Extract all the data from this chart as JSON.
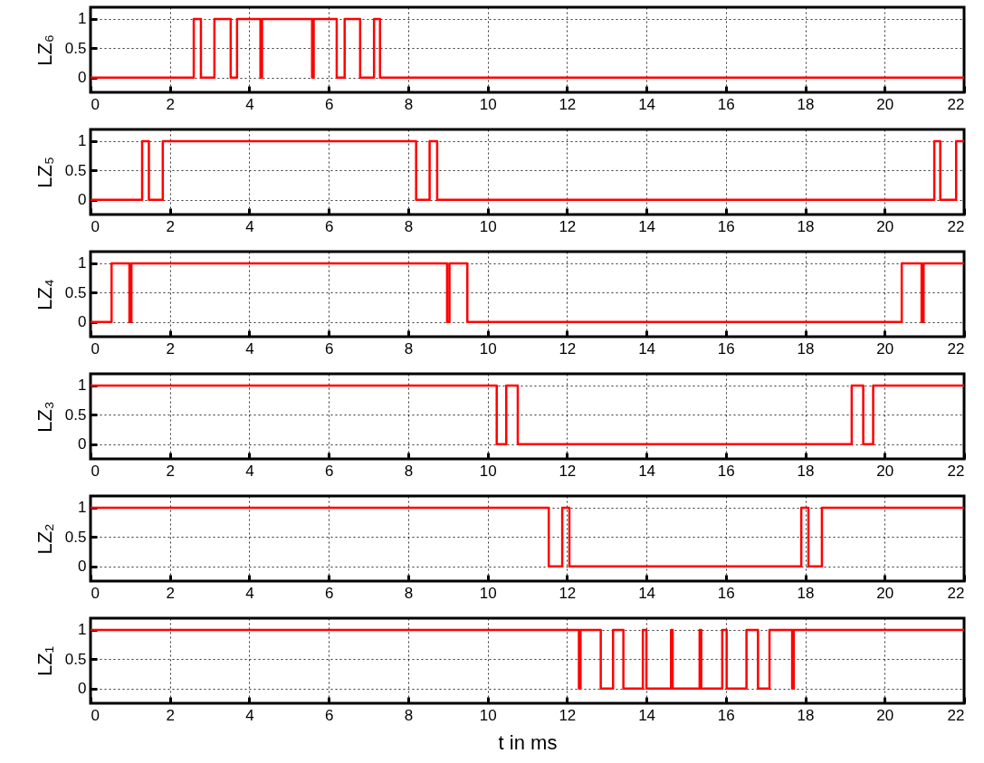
{
  "chart_data": [
    {
      "type": "step",
      "ylabel": "LZ₆",
      "color": "#ff0000",
      "x": [
        0,
        2.6,
        2.78,
        3.12,
        3.53,
        3.69,
        4.28,
        4.32,
        5.58,
        5.62,
        6.2,
        6.4,
        6.79,
        7.14,
        7.29,
        22
      ],
      "values": [
        0,
        1,
        0,
        1,
        0,
        1,
        0,
        1,
        0,
        1,
        0,
        1,
        0,
        1,
        0,
        0
      ],
      "xlim": [
        0,
        22
      ],
      "xticks": [
        0,
        2,
        4,
        6,
        8,
        10,
        12,
        14,
        16,
        18,
        20,
        22
      ],
      "ylim": [
        -0.25,
        1.2
      ],
      "yticks": [
        0,
        0.5,
        1
      ],
      "grid": true
    },
    {
      "type": "step",
      "ylabel": "LZ₅",
      "color": "#ff0000",
      "x": [
        0,
        1.3,
        1.47,
        1.82,
        8.2,
        8.54,
        8.73,
        21.25,
        21.4,
        21.8,
        22
      ],
      "values": [
        0,
        1,
        0,
        1,
        0,
        1,
        0,
        1,
        0,
        1,
        1
      ],
      "xlim": [
        0,
        22
      ],
      "xticks": [
        0,
        2,
        4,
        6,
        8,
        10,
        12,
        14,
        16,
        18,
        20,
        22
      ],
      "ylim": [
        -0.25,
        1.2
      ],
      "yticks": [
        0,
        0.5,
        1
      ],
      "grid": true
    },
    {
      "type": "step",
      "ylabel": "LZ₄",
      "color": "#ff0000",
      "x": [
        0,
        0.53,
        0.98,
        1.03,
        8.98,
        9.04,
        9.49,
        20.43,
        20.93,
        20.98,
        22
      ],
      "values": [
        0,
        1,
        0,
        1,
        0,
        1,
        0,
        1,
        0,
        1,
        1
      ],
      "xlim": [
        0,
        22
      ],
      "xticks": [
        0,
        2,
        4,
        6,
        8,
        10,
        12,
        14,
        16,
        18,
        20,
        22
      ],
      "ylim": [
        -0.25,
        1.2
      ],
      "yticks": [
        0,
        0.5,
        1
      ],
      "grid": true
    },
    {
      "type": "step",
      "ylabel": "LZ₃",
      "color": "#ff0000",
      "x": [
        0,
        10.23,
        10.47,
        10.76,
        19.17,
        19.46,
        19.71,
        22
      ],
      "values": [
        1,
        0,
        1,
        0,
        1,
        0,
        1,
        1
      ],
      "xlim": [
        0,
        22
      ],
      "xticks": [
        0,
        2,
        4,
        6,
        8,
        10,
        12,
        14,
        16,
        18,
        20,
        22
      ],
      "ylim": [
        -0.25,
        1.2
      ],
      "yticks": [
        0,
        0.5,
        1
      ],
      "grid": true
    },
    {
      "type": "step",
      "ylabel": "LZ₂",
      "color": "#ff0000",
      "x": [
        0,
        11.54,
        11.88,
        12.06,
        17.9,
        18.08,
        18.42,
        22
      ],
      "values": [
        1,
        0,
        1,
        0,
        1,
        0,
        1,
        1
      ],
      "xlim": [
        0,
        22
      ],
      "xticks": [
        0,
        2,
        4,
        6,
        8,
        10,
        12,
        14,
        16,
        18,
        20,
        22
      ],
      "ylim": [
        -0.25,
        1.2
      ],
      "yticks": [
        0,
        0.5,
        1
      ],
      "grid": true
    },
    {
      "type": "step",
      "ylabel": "LZ₁",
      "xlabel": "t  in  ms",
      "color": "#ff0000",
      "x": [
        0,
        12.3,
        12.34,
        12.85,
        13.16,
        13.42,
        13.91,
        14.0,
        14.62,
        14.66,
        15.34,
        15.38,
        15.91,
        16.02,
        16.52,
        16.81,
        17.1,
        17.67,
        17.71,
        22
      ],
      "values": [
        1,
        0,
        1,
        0,
        1,
        0,
        1,
        0,
        1,
        0,
        1,
        0,
        1,
        0,
        1,
        0,
        1,
        0,
        1,
        1
      ],
      "xlim": [
        0,
        22
      ],
      "xticks": [
        0,
        2,
        4,
        6,
        8,
        10,
        12,
        14,
        16,
        18,
        20,
        22
      ],
      "ylim": [
        -0.25,
        1.2
      ],
      "yticks": [
        0,
        0.5,
        1
      ],
      "grid": true
    }
  ]
}
